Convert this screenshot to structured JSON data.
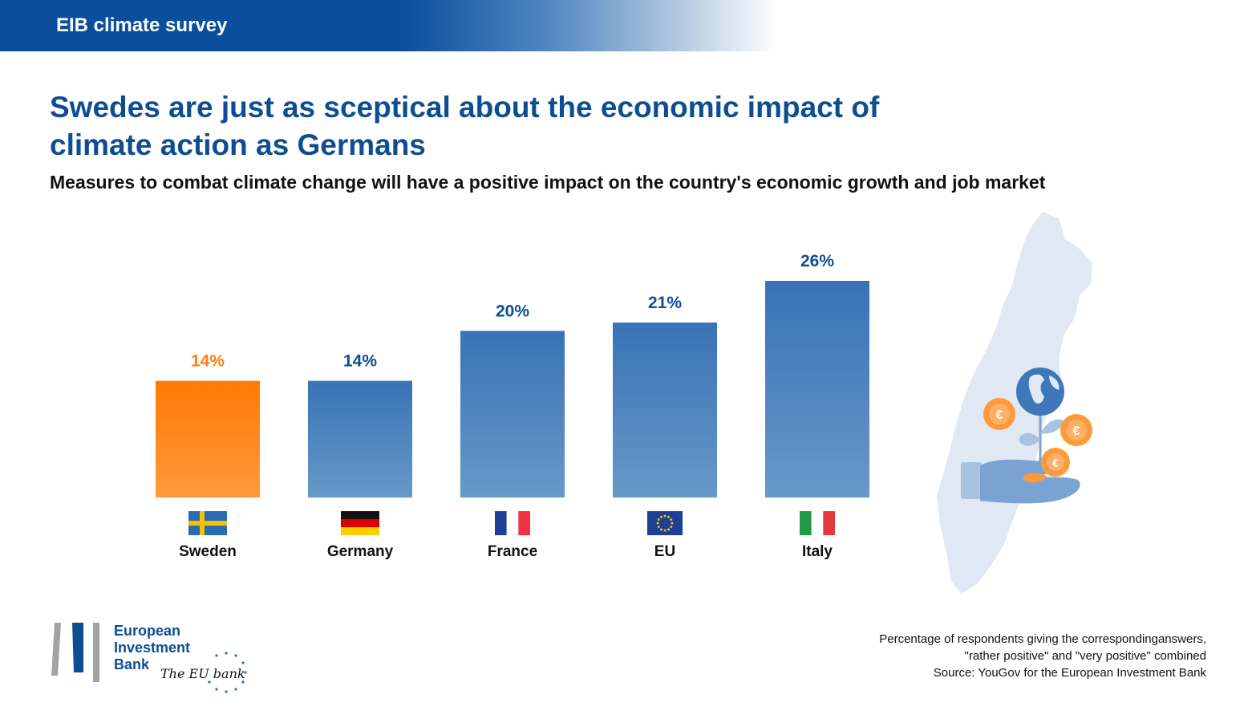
{
  "header": {
    "title": "EIB climate survey"
  },
  "headline": {
    "line1": "Swedes are just as sceptical about the economic impact of",
    "line2": "climate action as Germans"
  },
  "subtitle": "Measures to combat climate change will have a positive impact on the country's economic growth and job market",
  "chart_data": {
    "type": "bar",
    "title": "Swedes are just as sceptical about the economic impact of climate action as Germans",
    "subtitle": "Measures to combat climate change will have a positive impact on the country's economic growth and job market",
    "categories": [
      "Sweden",
      "Germany",
      "France",
      "EU",
      "Italy"
    ],
    "values": [
      14,
      14,
      20,
      21,
      26
    ],
    "value_labels": [
      "14%",
      "14%",
      "20%",
      "21%",
      "26%"
    ],
    "unit": "%",
    "highlight_category": "Sweden",
    "colors": {
      "highlight": "#ff7e0d",
      "default": "#3e78b8",
      "default_value_label": "#0d4e93"
    },
    "flags": [
      "sweden-flag",
      "germany-flag",
      "france-flag",
      "eu-flag",
      "italy-flag"
    ],
    "ylim": [
      0,
      26
    ],
    "grid": false,
    "legend": "none"
  },
  "footnote": {
    "line1": "Percentage of respondents giving the correspondinganswers,",
    "line2": "\"rather positive\" and \"very positive\" combined",
    "line3": "Source: YouGov for the European Investment Bank"
  },
  "logo": {
    "line1": "European",
    "line2": "Investment",
    "line3": "Bank",
    "tagline": "The EU bank"
  },
  "illustration": "sweden-map-hand-plant-coins-icon"
}
